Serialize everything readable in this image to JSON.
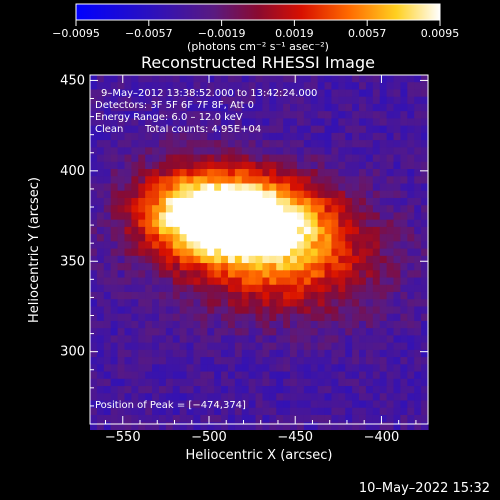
{
  "chart_data": {
    "type": "heatmap",
    "title": "Reconstructed RHESSI Image",
    "xlabel": "Heliocentric X (arcsec)",
    "ylabel": "Heliocentric Y (arcsec)",
    "xlim": [
      -569,
      -373
    ],
    "ylim": [
      260,
      453
    ],
    "xticks": [
      -550,
      -500,
      -450,
      -400
    ],
    "yticks": [
      300,
      350,
      400,
      450
    ],
    "x_tick_labels": [
      "−550",
      "−500",
      "−450",
      "−400"
    ],
    "y_tick_labels": [
      "300",
      "350",
      "400",
      "450"
    ],
    "colorbar": {
      "range": [
        -0.0095,
        0.0095
      ],
      "ticks": [
        -0.0095,
        -0.0057,
        -0.0019,
        0.0019,
        0.0057,
        0.0095
      ],
      "tick_labels": [
        "−0.0095",
        "−0.0057",
        "−0.0019",
        "0.0019",
        "0.0057",
        "0.0095"
      ],
      "units": "(photons cm⁻² s⁻¹ asec⁻²)",
      "colormap": "blue-purple-red-orange-yellow-white"
    },
    "peak": [
      -474,
      374
    ],
    "annotations": {
      "time_range": "9–May–2012 13:38:52.000 to 13:42:24.000",
      "detectors": "Detectors: 3F 5F 6F 7F 8F, Att 0",
      "energy": "Energy Range: 6.0 – 12.0 keV",
      "clean_label": "Clean",
      "total_counts": "Total counts: 4.95E+04",
      "peak_label": "Position of Peak = [−474,374]"
    },
    "grid": false
  },
  "footer": {
    "date": "10–May–2022 15:32"
  },
  "colors": {
    "background": "#000000",
    "text": "#ffffff",
    "colormap_stops": [
      "#0000ff",
      "#4b1a9a",
      "#5a2a8a",
      "#7a1060",
      "#c00000",
      "#ff4400",
      "#ffaa00",
      "#ffff40",
      "#ffffff"
    ]
  }
}
